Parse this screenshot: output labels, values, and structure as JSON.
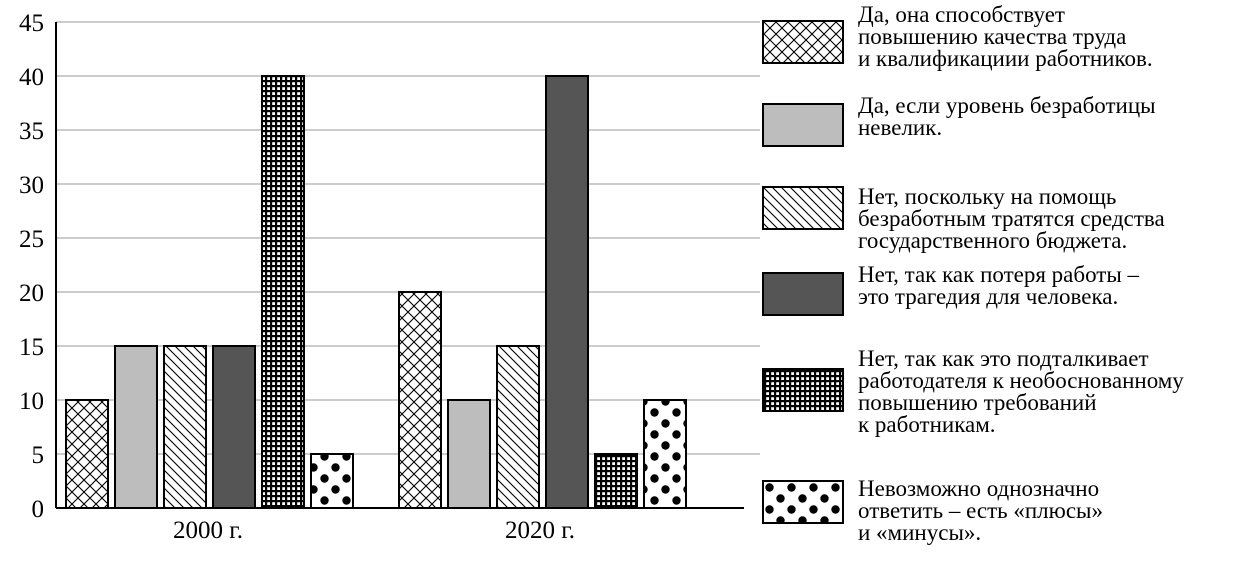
{
  "chart_data": {
    "type": "bar",
    "categories": [
      "2000 г.",
      "2020 г."
    ],
    "series": [
      {
        "name": "Да, она способствует\nповышению качества труда\nи квалификациии работников.",
        "values": [
          10,
          20
        ],
        "pattern": "crosshatch"
      },
      {
        "name": "Да, если уровень безработицы\nневелик.",
        "values": [
          15,
          10
        ],
        "pattern": "light-gray"
      },
      {
        "name": "Нет, поскольку на помощь\nбезработным тратятся средства\nгосударственного бюджета.",
        "values": [
          15,
          15
        ],
        "pattern": "diagonal"
      },
      {
        "name": "Нет, так как потеря работы –\nэто трагедия для человека.",
        "values": [
          15,
          40
        ],
        "pattern": "dark-gray"
      },
      {
        "name": "Нет, так как это подталкивает\nработодателя к необоснованному\nповышению требований\nк работникам.",
        "values": [
          40,
          5
        ],
        "pattern": "grid"
      },
      {
        "name": "Невозможно однозначно\nответить – есть «плюсы»\nи «минусы».",
        "values": [
          5,
          10
        ],
        "pattern": "dots"
      }
    ],
    "yticks": [
      0,
      5,
      10,
      15,
      20,
      25,
      30,
      35,
      40,
      45
    ],
    "ylim": [
      0,
      45
    ],
    "grid": true,
    "legend_position": "right",
    "colors": {
      "light_gray": "#bdbdbd",
      "dark_gray": "#555555",
      "outline": "#000000"
    }
  }
}
